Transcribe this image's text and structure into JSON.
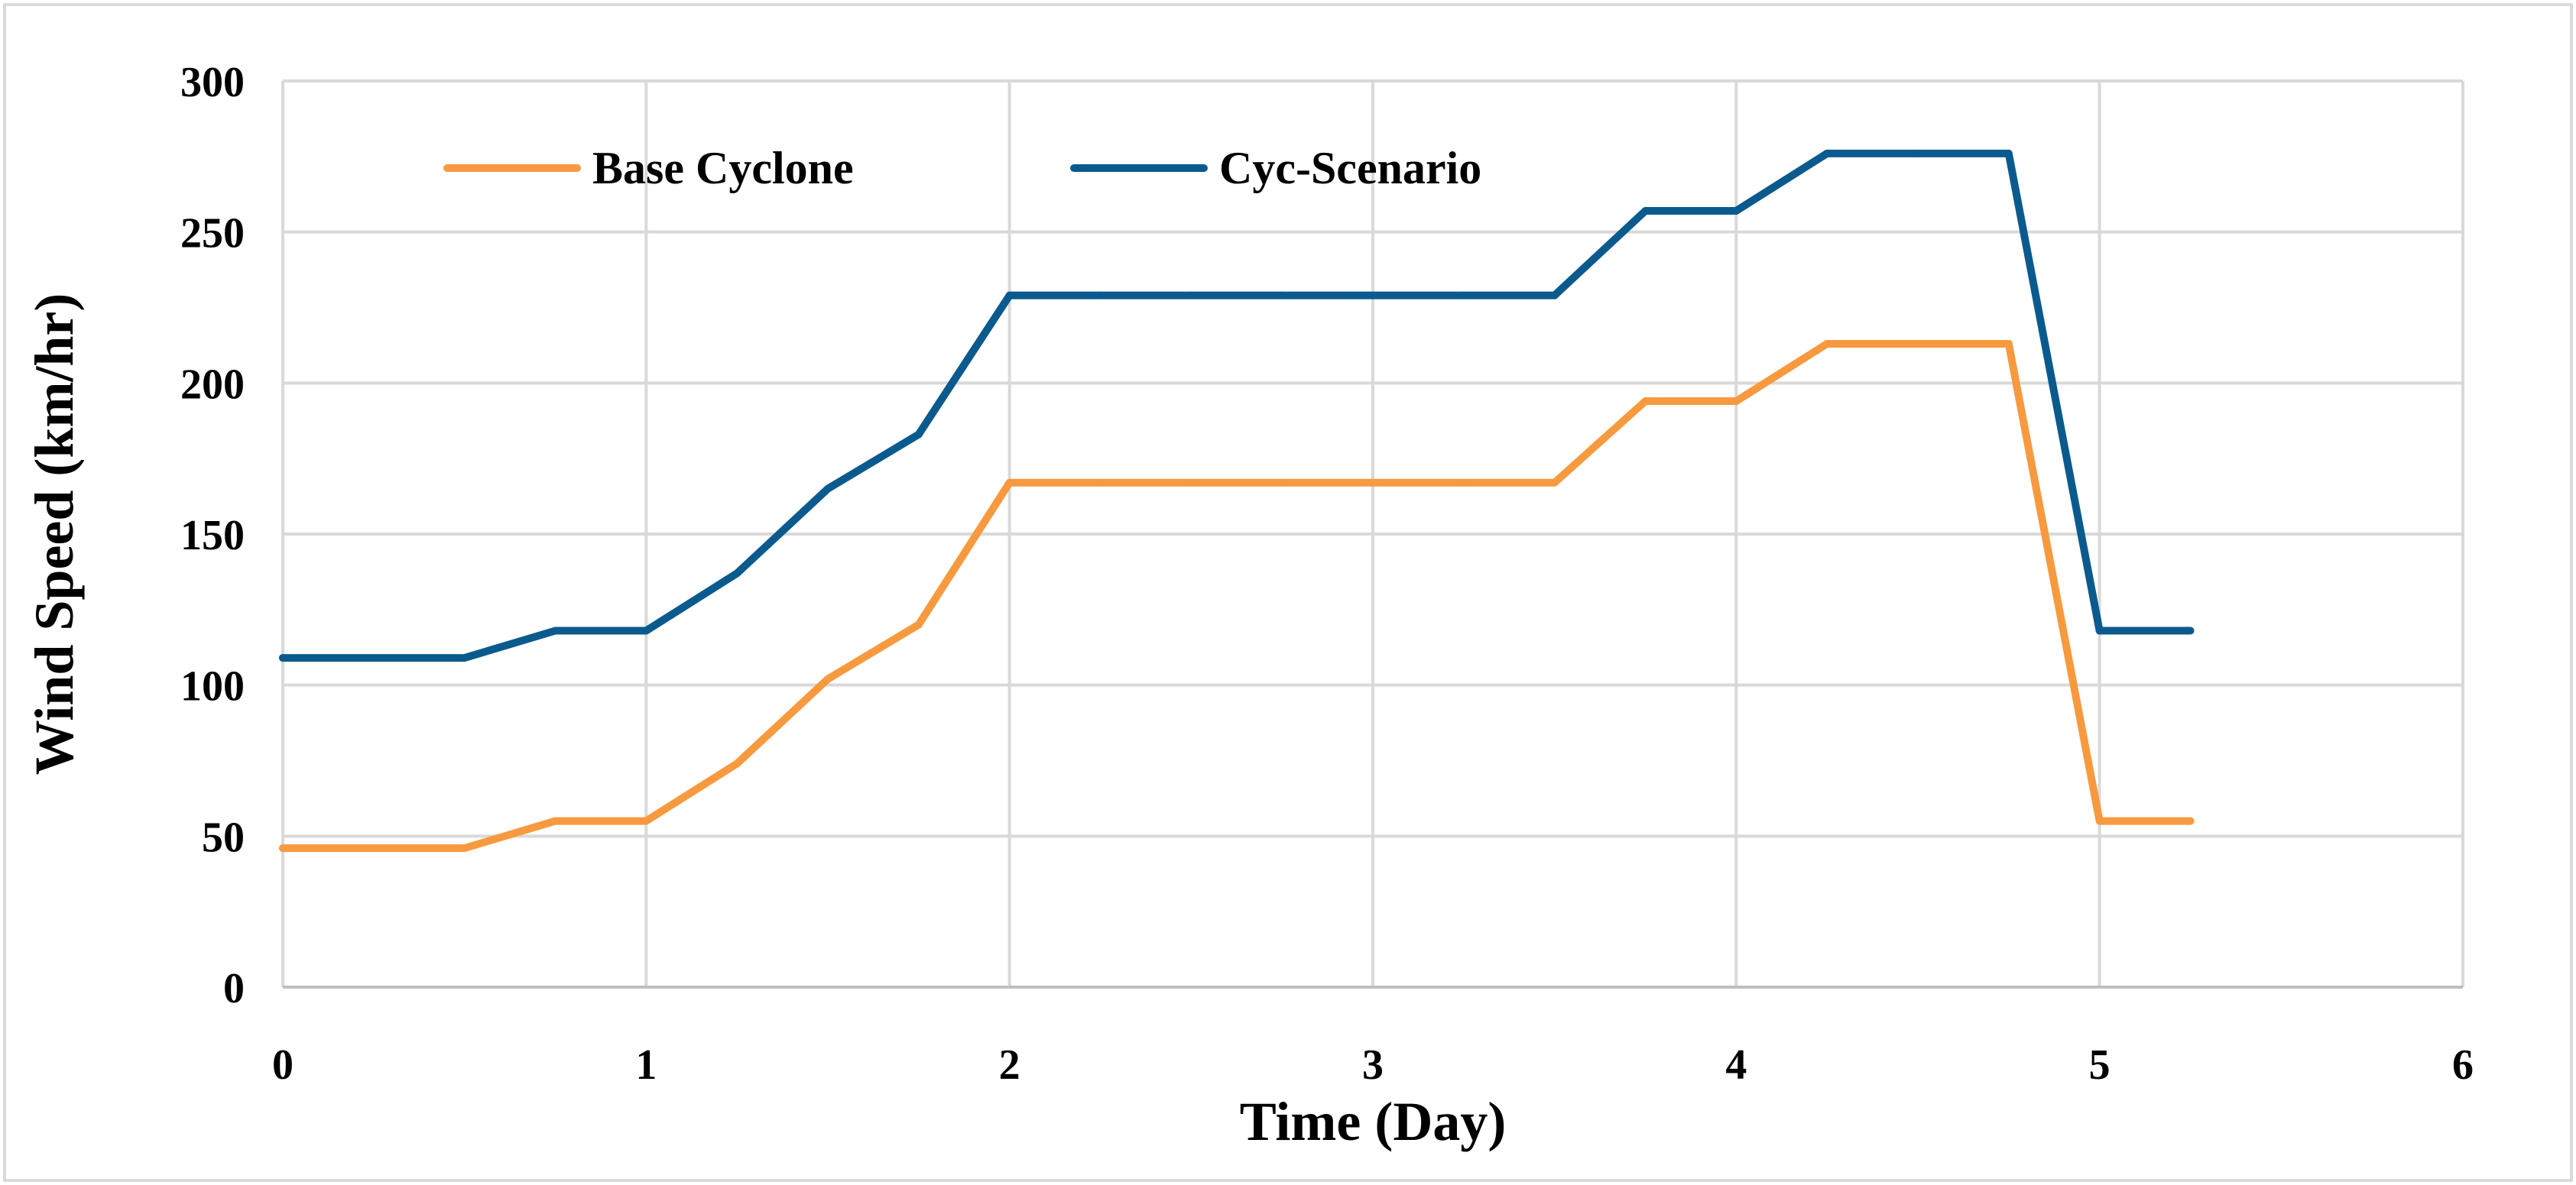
{
  "chart_data": {
    "type": "line",
    "title": "",
    "xlabel": "Time (Day)",
    "ylabel": "Wind Speed (km/hr)",
    "xlim": [
      0,
      6
    ],
    "ylim": [
      0,
      300
    ],
    "x_ticks": [
      0,
      1,
      2,
      3,
      4,
      5,
      6
    ],
    "y_ticks": [
      0,
      50,
      100,
      150,
      200,
      250,
      300
    ],
    "x_tick_labels": [
      "0",
      "1",
      "2",
      "3",
      "4",
      "5",
      "6"
    ],
    "y_tick_labels": [
      "0",
      "50",
      "100",
      "150",
      "200",
      "250",
      "300"
    ],
    "grid": true,
    "legend": "top-left, horizontal",
    "x": [
      0,
      0.5,
      0.75,
      1,
      1.25,
      1.5,
      1.75,
      2,
      2.25,
      2.5,
      2.75,
      3,
      3.25,
      3.5,
      3.75,
      4,
      4.25,
      4.5,
      4.75,
      5,
      5.25
    ],
    "series": [
      {
        "name": "Base Cyclone",
        "color": "#F79A3F",
        "values": [
          46,
          46,
          55,
          55,
          74,
          102,
          120,
          167,
          167,
          167,
          167,
          167,
          167,
          167,
          194,
          194,
          213,
          213,
          213,
          55,
          55
        ]
      },
      {
        "name": "Cyc-Scenario",
        "color": "#0B5A8E",
        "values": [
          109,
          109,
          118,
          118,
          137,
          165,
          183,
          229,
          229,
          229,
          229,
          229,
          229,
          229,
          257,
          257,
          276,
          276,
          276,
          118,
          118
        ]
      }
    ]
  }
}
